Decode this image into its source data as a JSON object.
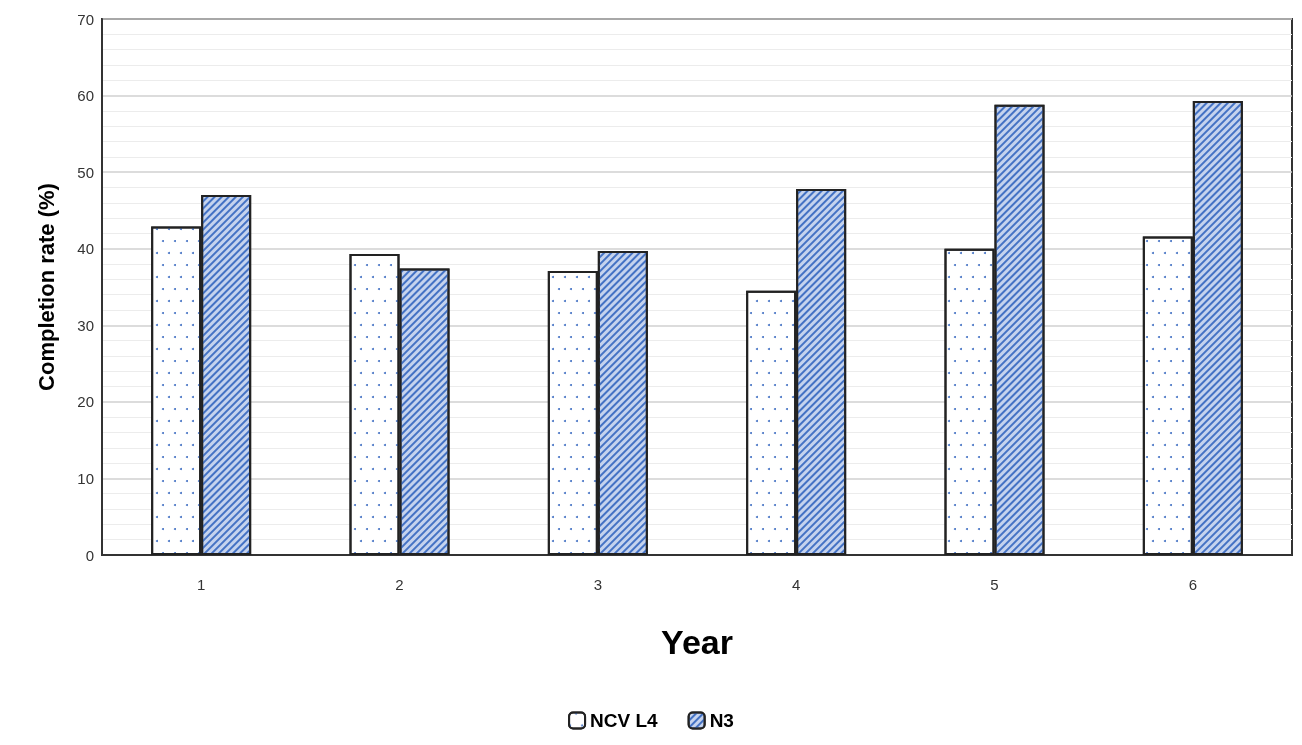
{
  "chart_data": {
    "type": "bar",
    "xlabel": "Year",
    "ylabel": "Completion rate (%)",
    "categories": [
      "1",
      "2",
      "3",
      "4",
      "5",
      "6"
    ],
    "series": [
      {
        "name": "NCV L4",
        "color": "#ffffff",
        "values": [
          42.9,
          39.3,
          37.1,
          34.5,
          40.0,
          41.6
        ]
      },
      {
        "name": "N3",
        "color": "#c5d3ee",
        "values": [
          47.0,
          37.4,
          39.7,
          47.8,
          58.8,
          59.3
        ]
      }
    ],
    "ylim": [
      0,
      70
    ],
    "yticks": [
      0,
      10,
      20,
      30,
      40,
      50,
      60,
      70
    ],
    "grid": "y",
    "legend": "bottom"
  }
}
